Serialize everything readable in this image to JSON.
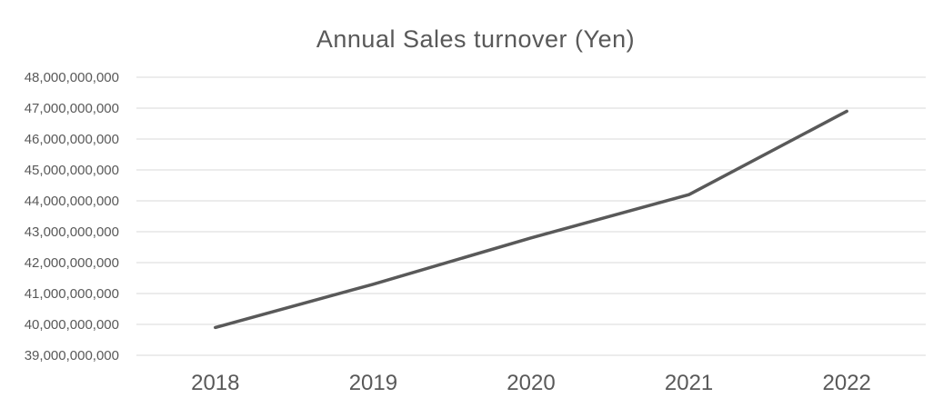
{
  "chart_data": {
    "type": "line",
    "title": "Annual Sales turnover (Yen)",
    "categories": [
      "2018",
      "2019",
      "2020",
      "2021",
      "2022"
    ],
    "series": [
      {
        "name": "Annual Sales turnover",
        "values": [
          39900000000,
          41300000000,
          42800000000,
          44200000000,
          46900000000
        ]
      }
    ],
    "ylim": [
      39000000000,
      48000000000
    ],
    "ytick_step": 1000000000,
    "y_tick_labels": [
      "48,000,000,000",
      "47,000,000,000",
      "46,000,000,000",
      "45,000,000,000",
      "44,000,000,000",
      "43,000,000,000",
      "42,000,000,000",
      "41,000,000,000",
      "40,000,000,000",
      "39,000,000,000"
    ],
    "grid": "horizontal",
    "legend": "none",
    "colors": {
      "line": "#595959",
      "gridline": "#d9d9d9",
      "title_text": "#595959",
      "tick_text": "#595959",
      "background": "#ffffff"
    }
  }
}
